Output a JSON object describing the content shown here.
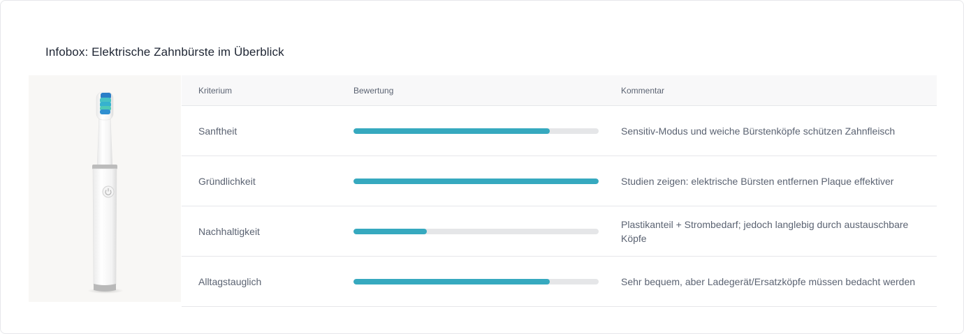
{
  "title": "Infobox: Elektrische Zahnbürste im Überblick",
  "image": {
    "icon": "toothbrush-image"
  },
  "table": {
    "headers": {
      "criterion": "Kriterium",
      "rating": "Bewertung",
      "comment": "Kommentar"
    },
    "rows": [
      {
        "criterion": "Sanftheit",
        "rating": 0.8,
        "comment": "Sensitiv-Modus und weiche Bürstenköpfe schützen Zahnfleisch"
      },
      {
        "criterion": "Gründlichkeit",
        "rating": 1.0,
        "comment": "Studien zeigen: elektrische Bürsten entfernen Plaque effektiver"
      },
      {
        "criterion": "Nachhaltigkeit",
        "rating": 0.3,
        "comment": "Plastikanteil + Strombedarf; jedoch langlebig durch austauschbare Köpfe"
      },
      {
        "criterion": "Alltagstauglich",
        "rating": 0.8,
        "comment": "Sehr bequem, aber Ladegerät/Ersatzköpfe müssen bedacht werden"
      }
    ]
  },
  "colors": {
    "bar_fill": "#36a9bf",
    "bar_track": "#e5e6e8"
  }
}
